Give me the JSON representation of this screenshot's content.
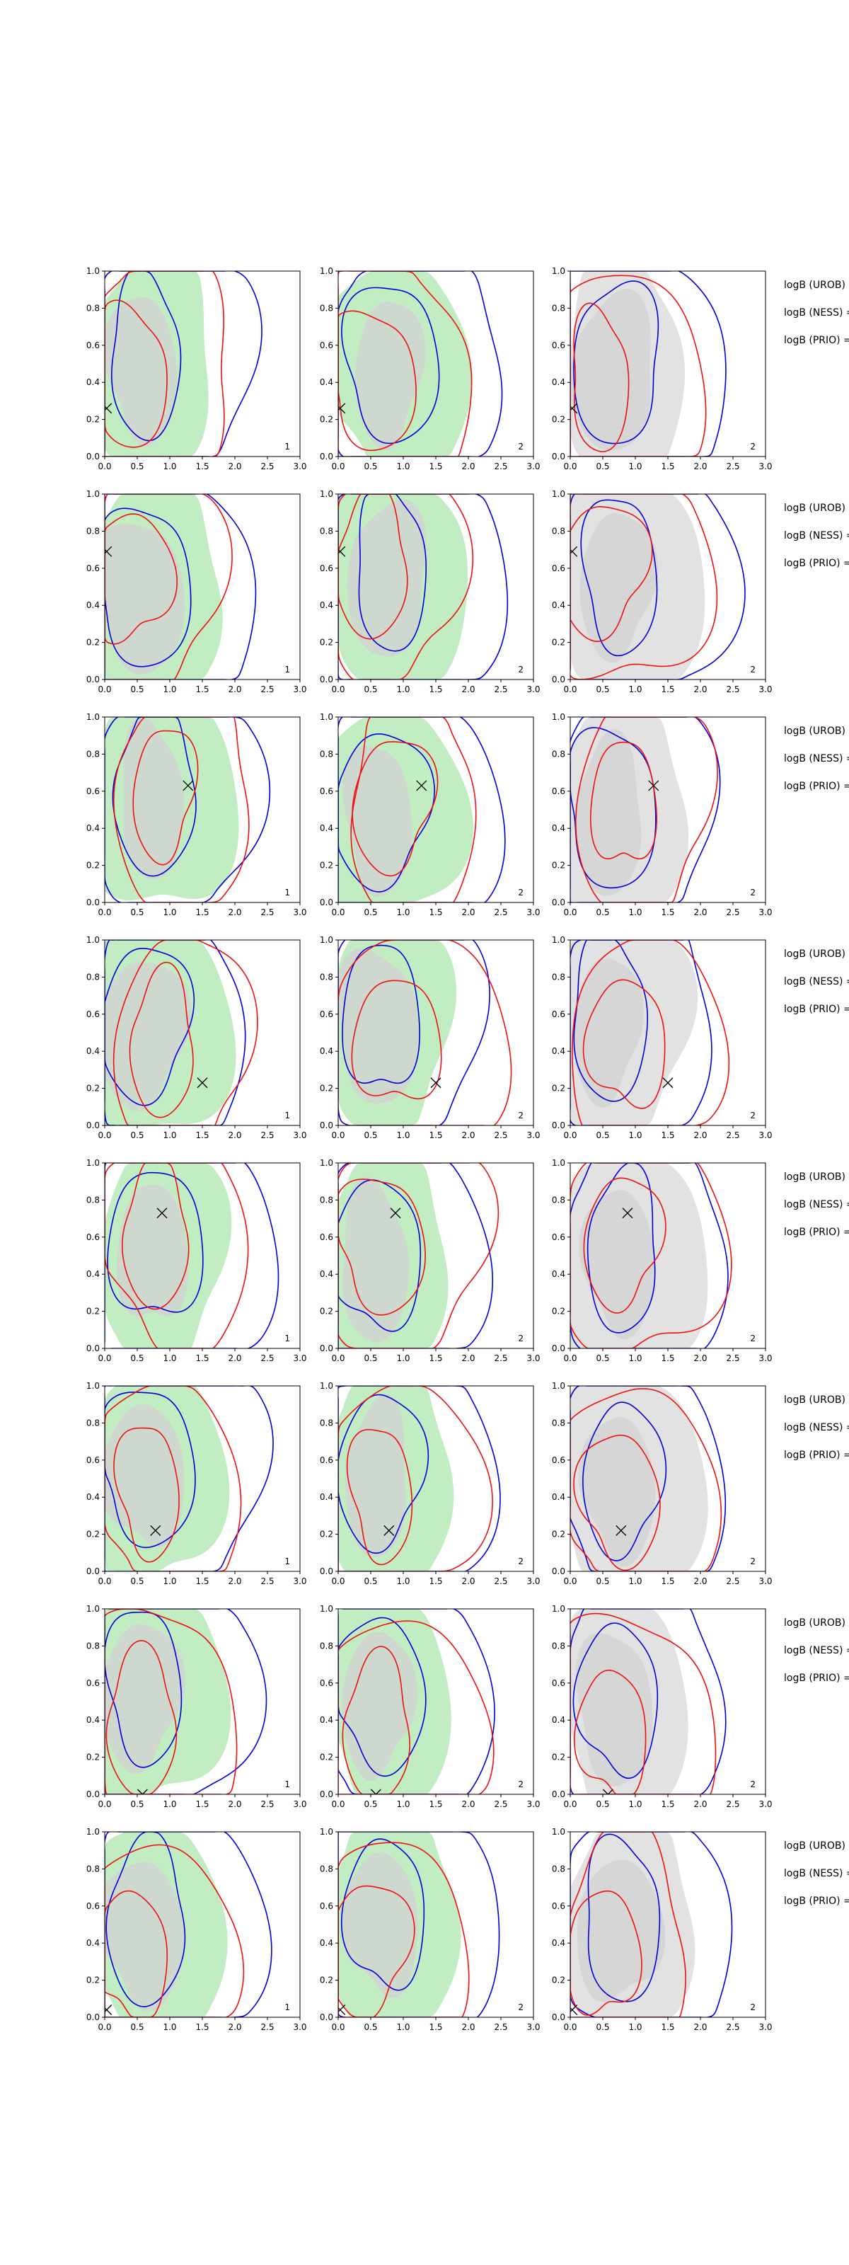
{
  "figure": {
    "description": "",
    "colors": {
      "green_fill": "#c2ecc2",
      "grey_fill": "#e2e2e2",
      "inner_fill": "#d2d2d2",
      "blue_line": "#0000dd",
      "red_line": "#ee1111",
      "marker": "#000000"
    },
    "annotation_lines": [
      "logB (UROB) =",
      "logB (NESS) =",
      "logB (PRIO) ="
    ]
  },
  "chart_data": {
    "type": "contour",
    "grid": {
      "rows": 8,
      "cols": 3
    },
    "xlim": [
      0,
      3
    ],
    "ylim": [
      0,
      1
    ],
    "x_ticks": [
      "0.0",
      "0.5",
      "1.0",
      "1.5",
      "2.0",
      "2.5",
      "3.0"
    ],
    "y_ticks": [
      "0.0",
      "0.2",
      "0.4",
      "0.6",
      "0.8",
      "1.0"
    ],
    "panel_labels": [
      "1",
      "2",
      "2"
    ],
    "truth_markers": [
      {
        "x": 0.03,
        "y": 0.26
      },
      {
        "x": 0.03,
        "y": 0.69
      },
      {
        "x": 1.28,
        "y": 0.63
      },
      {
        "x": 1.5,
        "y": 0.23
      },
      {
        "x": 0.88,
        "y": 0.73
      },
      {
        "x": 0.78,
        "y": 0.22
      },
      {
        "x": 0.58,
        "y": 0.0
      },
      {
        "x": 0.03,
        "y": 0.04
      }
    ]
  }
}
